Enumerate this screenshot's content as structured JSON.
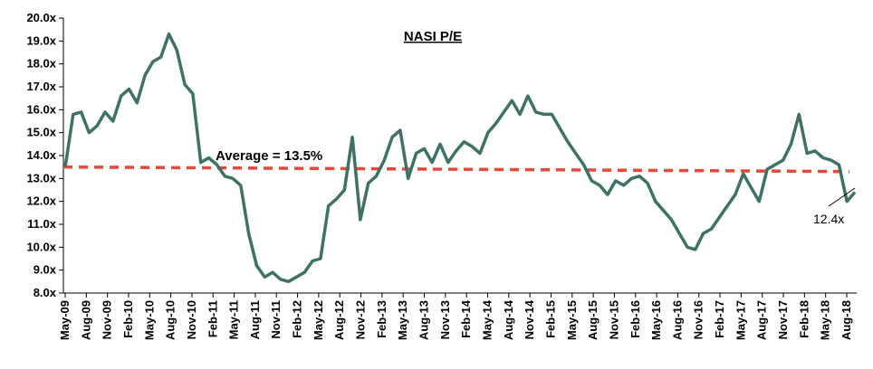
{
  "chart_data": {
    "type": "line",
    "title": "NASI P/E",
    "xlabel": "",
    "ylabel": "",
    "ylim": [
      8.0,
      20.0
    ],
    "y_tick_labels": [
      "8.0x",
      "9.0x",
      "10.0x",
      "11.0x",
      "12.0x",
      "13.0x",
      "14.0x",
      "15.0x",
      "16.0x",
      "17.0x",
      "18.0x",
      "19.0x",
      "20.0x"
    ],
    "x_tick_labels": [
      "May-09",
      "Aug-09",
      "Nov-09",
      "Feb-10",
      "May-10",
      "Aug-10",
      "Nov-10",
      "Feb-11",
      "May-11",
      "Aug-11",
      "Nov-11",
      "Feb-12",
      "May-12",
      "Aug-12",
      "Nov-12",
      "Feb-13",
      "May-13",
      "Aug-13",
      "Nov-13",
      "Feb-14",
      "May-14",
      "Aug-14",
      "Nov-14",
      "Feb-15",
      "May-15",
      "Aug-15",
      "Nov-15",
      "Feb-16",
      "May-16",
      "Aug-16",
      "Nov-16",
      "Feb-17",
      "May-17",
      "Aug-17",
      "Nov-17",
      "Feb-18",
      "May-18",
      "Aug-18"
    ],
    "grid": false,
    "legend": "none",
    "series": [
      {
        "values": [
          13.5,
          15.8,
          15.9,
          15.0,
          15.3,
          15.9,
          15.5,
          16.6,
          16.9,
          16.3,
          17.5,
          18.1,
          18.3,
          19.3,
          18.6,
          17.1,
          16.7,
          13.7,
          13.9,
          13.6,
          13.1,
          13.0,
          12.7,
          10.6,
          9.2,
          8.7,
          8.9,
          8.6,
          8.5,
          8.7,
          8.9,
          9.4,
          9.5,
          11.8,
          12.1,
          12.5,
          14.8,
          11.2,
          12.8,
          13.1,
          13.8,
          14.8,
          15.1,
          13.0,
          14.1,
          14.3,
          13.7,
          14.5,
          13.7,
          14.2,
          14.6,
          14.4,
          14.1,
          15.0,
          15.4,
          15.9,
          16.4,
          15.8,
          16.6,
          15.9,
          15.8,
          15.8,
          15.2,
          14.6,
          14.1,
          13.6,
          12.9,
          12.7,
          12.3,
          12.9,
          12.7,
          13.0,
          13.1,
          12.8,
          12.0,
          11.6,
          11.2,
          10.6,
          10.0,
          9.9,
          10.6,
          10.8,
          11.3,
          11.8,
          12.3,
          13.2,
          12.6,
          12.0,
          13.4,
          13.6,
          13.8,
          14.5,
          15.8,
          14.1,
          14.2,
          13.9,
          13.8,
          13.6,
          12.0,
          12.4
        ],
        "color": "#3e7266"
      }
    ],
    "average": {
      "value": 13.5,
      "label": "Average = 13.5%",
      "color": "#e8473a"
    },
    "end_label": "12.4x"
  }
}
